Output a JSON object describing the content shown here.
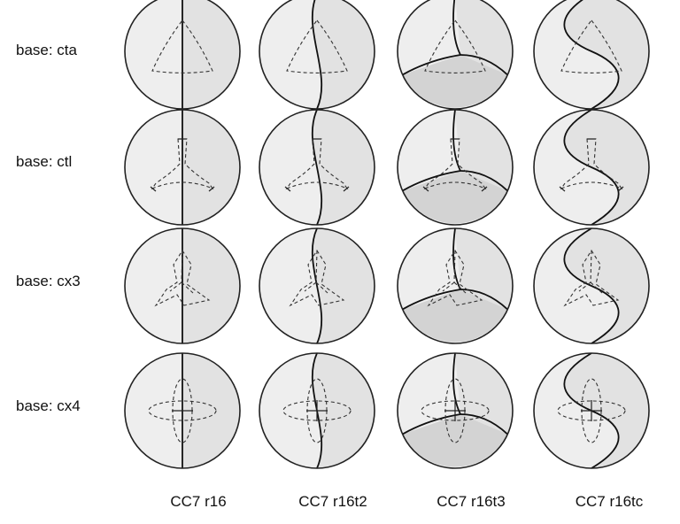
{
  "rows": [
    {
      "label": "base: cta",
      "base": "cta"
    },
    {
      "label": "base: ctl",
      "base": "ctl"
    },
    {
      "label": "base: cx3",
      "base": "cx3"
    },
    {
      "label": "base: cx4",
      "base": "cx4"
    }
  ],
  "columns": [
    {
      "label": "CC7 r16",
      "cut": "r16"
    },
    {
      "label": "CC7 r16t2",
      "cut": "r16t2"
    },
    {
      "label": "CC7 r16t3",
      "cut": "r16t3"
    },
    {
      "label": "CC7 r16tc",
      "cut": "r16tc"
    }
  ],
  "colors": {
    "light_region": "#eeeeee",
    "mid_region": "#e2e2e2",
    "dark_region": "#d3d3d3",
    "outline": "#222222"
  }
}
